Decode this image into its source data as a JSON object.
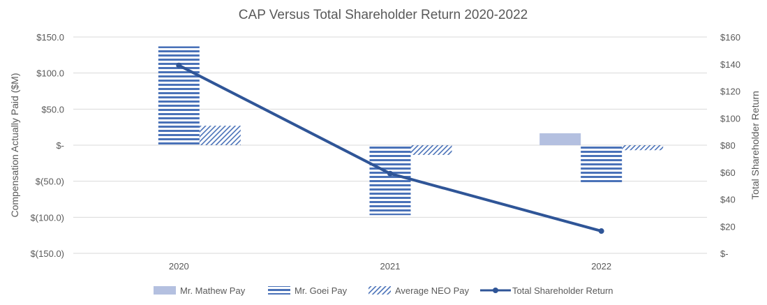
{
  "chart_data": {
    "type": "bar+line",
    "title": "CAP Versus Total Shareholder Return 2020-2022",
    "categories": [
      "2020",
      "2021",
      "2022"
    ],
    "ylabel": "Compensation Actually Paid ($M)",
    "y2label": "Total Shareholder Return",
    "ylim": [
      -150,
      150
    ],
    "y2lim": [
      0,
      160
    ],
    "yticks": [
      "$150.0",
      "$100.0",
      "$50.0",
      "$-",
      "$(50.0)",
      "$(100.0)",
      "$(150.0)"
    ],
    "yticks_values": [
      150,
      100,
      50,
      0,
      -50,
      -100,
      -150
    ],
    "y2ticks": [
      "$160",
      "$140",
      "$120",
      "$100",
      "$80",
      "$60",
      "$40",
      "$20",
      "$-"
    ],
    "y2ticks_values": [
      160,
      140,
      120,
      100,
      80,
      60,
      40,
      20,
      0
    ],
    "grid": true,
    "legend_position": "bottom",
    "series": [
      {
        "name": "Mr. Mathew Pay",
        "kind": "bar",
        "values": [
          0,
          0,
          16.5
        ],
        "color": "#b4c0e0",
        "pattern": "solid"
      },
      {
        "name": "Mr. Goei Pay",
        "kind": "bar",
        "values": [
          137,
          -97,
          -52.5
        ],
        "color": "#4a72b8",
        "pattern": "horizontal-stripes"
      },
      {
        "name": "Average NEO Pay",
        "kind": "bar",
        "values": [
          27,
          -13.5,
          -7
        ],
        "color": "#4a72b8",
        "pattern": "diagonal-hatch"
      },
      {
        "name": "Total Shareholder Return",
        "kind": "line",
        "axis": "right",
        "values": [
          139,
          59,
          16.5
        ],
        "color": "#2f5597"
      }
    ]
  }
}
